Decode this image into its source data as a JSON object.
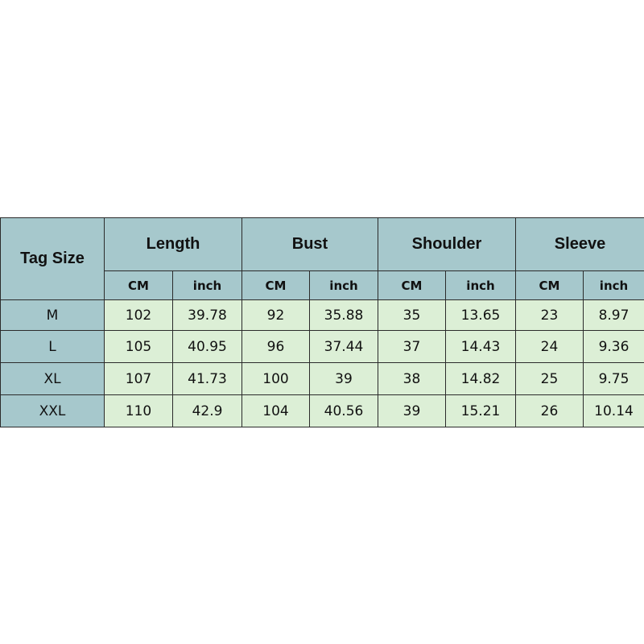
{
  "table": {
    "corner": "Tag Size",
    "groups": [
      "Length",
      "Bust",
      "Shoulder",
      "Sleeve"
    ],
    "units": [
      "CM",
      "inch",
      "CM",
      "inch",
      "CM",
      "inch",
      "CM",
      "inch"
    ],
    "rows": [
      [
        "M",
        102,
        39.78,
        92,
        35.88,
        35,
        13.65,
        23,
        8.97
      ],
      [
        "L",
        105,
        40.95,
        96,
        37.44,
        37,
        14.43,
        24,
        9.36
      ],
      [
        "XL",
        107,
        41.73,
        100,
        39,
        38,
        14.82,
        25,
        9.75
      ],
      [
        "XXL",
        110,
        42.9,
        104,
        40.56,
        39,
        15.21,
        26,
        10.14
      ]
    ]
  }
}
